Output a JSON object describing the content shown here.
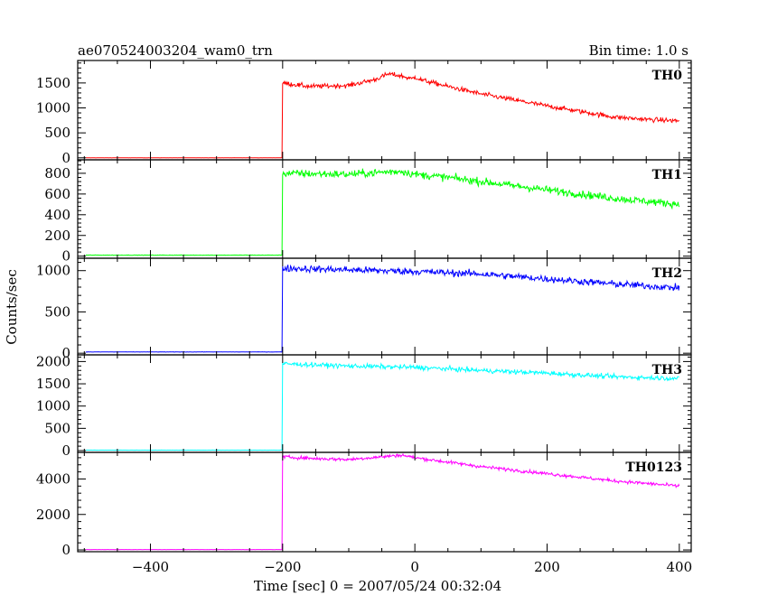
{
  "chart_data": {
    "type": "line",
    "title": "ae070524003204_wam0_trn",
    "subtitle": "Bin time: 1.0 s",
    "xlabel": "Time [sec] 0 = 2007/05/24 00:32:04",
    "ylabel": "Counts/sec",
    "xlim": [
      -510,
      418
    ],
    "x_ticks": [
      -400,
      -200,
      0,
      200,
      400
    ],
    "trigger_time": -200,
    "grid": false,
    "panels": [
      {
        "name": "TH0",
        "color": "#ff0000",
        "ylim": [
          -40,
          1950
        ],
        "y_ticks": [
          0,
          500,
          1000,
          1500
        ],
        "baseline": 0,
        "noise": 45,
        "profile": [
          [
            -200,
            1500
          ],
          [
            -160,
            1430
          ],
          [
            -100,
            1450
          ],
          [
            -60,
            1570
          ],
          [
            -40,
            1680
          ],
          [
            -20,
            1640
          ],
          [
            -5,
            1580
          ],
          [
            0,
            1620
          ],
          [
            10,
            1560
          ],
          [
            50,
            1430
          ],
          [
            100,
            1280
          ],
          [
            150,
            1160
          ],
          [
            200,
            1040
          ],
          [
            250,
            930
          ],
          [
            300,
            820
          ],
          [
            350,
            770
          ],
          [
            400,
            740
          ]
        ]
      },
      {
        "name": "TH1",
        "color": "#00ff00",
        "ylim": [
          -20,
          930
        ],
        "y_ticks": [
          0,
          200,
          400,
          600,
          800
        ],
        "baseline": 10,
        "noise": 35,
        "profile": [
          [
            -200,
            800
          ],
          [
            -100,
            790
          ],
          [
            -50,
            810
          ],
          [
            -20,
            820
          ],
          [
            0,
            790
          ],
          [
            50,
            760
          ],
          [
            100,
            720
          ],
          [
            200,
            640
          ],
          [
            300,
            560
          ],
          [
            400,
            500
          ]
        ]
      },
      {
        "name": "TH2",
        "color": "#0000ff",
        "ylim": [
          -20,
          1150
        ],
        "y_ticks": [
          0,
          500,
          1000
        ],
        "baseline": 15,
        "noise": 40,
        "profile": [
          [
            -200,
            1030
          ],
          [
            -100,
            1010
          ],
          [
            0,
            990
          ],
          [
            100,
            960
          ],
          [
            200,
            900
          ],
          [
            300,
            840
          ],
          [
            400,
            790
          ]
        ]
      },
      {
        "name": "TH3",
        "color": "#00ffff",
        "ylim": [
          -40,
          2150
        ],
        "y_ticks": [
          0,
          500,
          1000,
          1500,
          2000
        ],
        "baseline": 10,
        "noise": 50,
        "profile": [
          [
            -200,
            1950
          ],
          [
            -100,
            1900
          ],
          [
            0,
            1870
          ],
          [
            100,
            1800
          ],
          [
            200,
            1740
          ],
          [
            300,
            1660
          ],
          [
            400,
            1620
          ]
        ]
      },
      {
        "name": "TH0123",
        "color": "#ff00ff",
        "ylim": [
          -100,
          5500
        ],
        "y_ticks": [
          0,
          2000,
          4000
        ],
        "baseline": 20,
        "noise": 90,
        "profile": [
          [
            -200,
            5250
          ],
          [
            -150,
            5150
          ],
          [
            -100,
            5100
          ],
          [
            -50,
            5250
          ],
          [
            -20,
            5350
          ],
          [
            0,
            5200
          ],
          [
            50,
            4950
          ],
          [
            100,
            4700
          ],
          [
            200,
            4300
          ],
          [
            300,
            3900
          ],
          [
            400,
            3600
          ]
        ]
      }
    ]
  }
}
